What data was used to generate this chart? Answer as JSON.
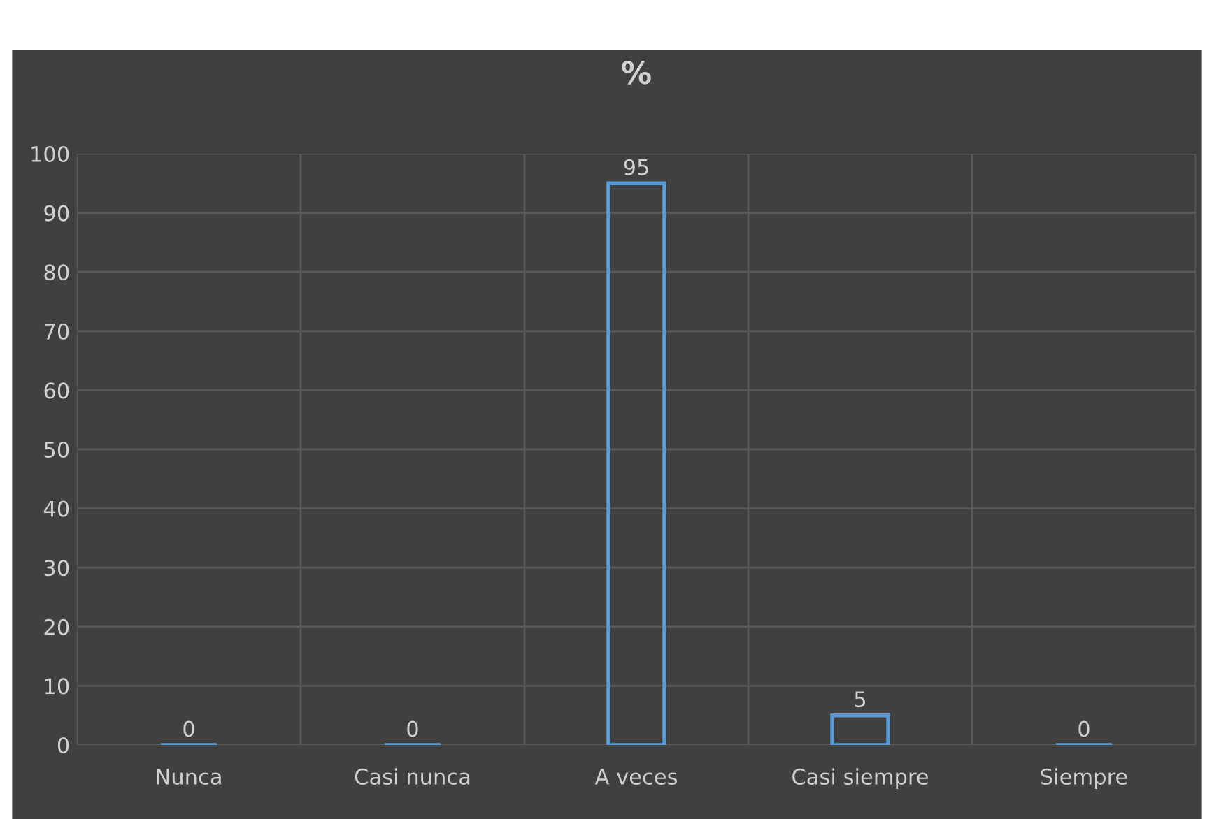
{
  "chart_data": {
    "type": "bar",
    "title": "%",
    "categories": [
      "Nunca",
      "Casi nunca",
      "A veces",
      "Casi siempre",
      "Siempre"
    ],
    "values": [
      0,
      0,
      95,
      5,
      0
    ],
    "color": "#5b9bd5",
    "ylim": [
      0,
      100
    ],
    "yticks": [
      0,
      10,
      20,
      30,
      40,
      50,
      60,
      70,
      80,
      90,
      100
    ],
    "grid": true,
    "data_labels": true
  }
}
